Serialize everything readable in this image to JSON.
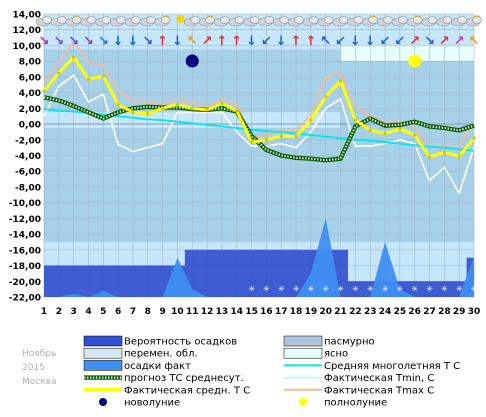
{
  "watermark": {
    "month_year": "Ноябрь 2015",
    "month": "Ноябрь",
    "year": "2015",
    "city": "Москва"
  },
  "colors": {
    "bg_light": "#c6e6fb",
    "bg_mid": "#a7d0e9",
    "clear": "#eafdfe",
    "precip_prob": "#3350cf",
    "precip_fact": "#3f8ef2",
    "tmin": "#ffffff",
    "tmax": "#f5b99a",
    "tavg": "#ffff00",
    "forecast": "#0a7d0a",
    "climate": "#00e5ee",
    "new_moon": "#000080",
    "full_moon": "#ffff00"
  },
  "chart_data": {
    "type": "line",
    "x": [
      1,
      2,
      3,
      4,
      5,
      6,
      7,
      8,
      9,
      10,
      11,
      12,
      13,
      14,
      15,
      16,
      17,
      18,
      19,
      20,
      21,
      22,
      23,
      24,
      25,
      26,
      27,
      28,
      29,
      30
    ],
    "xlim": [
      1,
      30
    ],
    "ylim": [
      -22,
      14
    ],
    "yticks": [
      "14,00",
      "12,00",
      "10,00",
      "8,00",
      "6,00",
      "4,00",
      "2,00",
      "0,00",
      "-2,00",
      "-4,00",
      "-6,00",
      "-8,00",
      "-10,00",
      "-12,00",
      "-14,00",
      "-16,00",
      "-18,00",
      "-20,00",
      "-22,00"
    ],
    "xticks": [
      "1",
      "2",
      "3",
      "4",
      "5",
      "6",
      "7",
      "8",
      "9",
      "10",
      "11",
      "12",
      "13",
      "14",
      "15",
      "16",
      "17",
      "18",
      "19",
      "20",
      "21",
      "22",
      "23",
      "24",
      "25",
      "26",
      "27",
      "28",
      "29",
      "30"
    ],
    "grid": true,
    "series": [
      {
        "name": "Фактическая средн. Т С",
        "key": "tavg",
        "values": [
          4.2,
          6.5,
          8.5,
          5.7,
          6.1,
          2.5,
          1.5,
          1.3,
          2.0,
          2.5,
          2.0,
          1.8,
          2.6,
          1.7,
          -2.3,
          -2.0,
          -1.5,
          -1.6,
          0.5,
          3.5,
          5.5,
          0.5,
          -0.8,
          -1.2,
          -0.6,
          -1.4,
          -4.2,
          -3.6,
          -4.1,
          -1.8
        ]
      },
      {
        "name": "Фактическая Tmin, С",
        "key": "tmin",
        "values": [
          1.0,
          4.8,
          6.2,
          2.8,
          3.8,
          -2.6,
          -3.5,
          -3.0,
          -2.5,
          1.5,
          1.5,
          1.5,
          1.5,
          -1.0,
          -2.8,
          -2.8,
          -2.5,
          -3.0,
          -1.0,
          2.0,
          3.2,
          -2.8,
          -2.8,
          -2.5,
          -2.0,
          -2.5,
          -7.2,
          -5.5,
          -8.8,
          -3.0
        ]
      },
      {
        "name": "Фактическая Tmax, С",
        "key": "tmax",
        "values": [
          5.2,
          7.8,
          10.5,
          7.8,
          7.5,
          4.2,
          3.0,
          2.8,
          2.5,
          3.2,
          2.8,
          2.2,
          3.2,
          2.6,
          -1.8,
          -1.4,
          -0.8,
          -0.8,
          1.2,
          6.0,
          6.4,
          2.3,
          1.0,
          0.3,
          0.3,
          -0.4,
          -3.0,
          -2.7,
          -2.8,
          0.2
        ]
      },
      {
        "name": "прогноз ТС среднесут.",
        "key": "forecast",
        "values": [
          3.4,
          3.0,
          2.3,
          1.5,
          0.7,
          1.5,
          2.0,
          2.2,
          2.1,
          2.1,
          1.9,
          1.8,
          2.0,
          1.6,
          -1.5,
          -3.3,
          -4.0,
          -4.3,
          -4.4,
          -4.6,
          -4.4,
          -0.3,
          0.7,
          -0.2,
          -0.1,
          0.3,
          -0.3,
          -0.5,
          -0.8,
          -0.2
        ]
      },
      {
        "name": "Средняя многолетняя Т С",
        "key": "climate",
        "values": [
          1.9,
          1.7,
          1.6,
          1.4,
          1.2,
          1.0,
          0.8,
          0.6,
          0.5,
          0.3,
          0.1,
          -0.1,
          -0.3,
          -0.5,
          -0.7,
          -0.9,
          -1.0,
          -1.2,
          -1.4,
          -1.6,
          -1.8,
          -2.0,
          -2.1,
          -2.3,
          -2.5,
          -2.7,
          -2.9,
          -3.0,
          -3.2,
          -3.4
        ]
      }
    ],
    "precip_probability": [
      -18,
      -18,
      -18,
      -18,
      -18,
      -18,
      -18,
      -18,
      -18,
      -18,
      -16,
      -16,
      -16,
      -16,
      -16,
      -16,
      -16,
      -16,
      -16,
      -16,
      -16,
      -20,
      -20,
      -20,
      -20,
      -20,
      -20,
      -20,
      -20,
      -17
    ],
    "precip_fact": [
      -22,
      -22,
      -21.6,
      -22,
      -21.2,
      -22,
      -22,
      -22,
      -22,
      -17,
      -21,
      -22,
      -22,
      -22,
      -22,
      -22,
      -22,
      -22,
      -19,
      -12,
      -22,
      -22,
      -22,
      -15,
      -21,
      -22,
      -22,
      -22,
      -22,
      -16.8
    ],
    "snow_markers": [
      15,
      16,
      17,
      18,
      19,
      20,
      21,
      22,
      23,
      24,
      25,
      26,
      27,
      28,
      29,
      30
    ],
    "cloud_band": [
      {
        "from": 1,
        "to": 21,
        "y_top": 9.5,
        "y_bottom": 2.0,
        "tone": "bg_light"
      },
      {
        "from": 21,
        "to": 30,
        "y_top": 10.0,
        "y_bottom": 8.0,
        "tone": "clear"
      }
    ],
    "wind_arrows": [
      "↘",
      "↘",
      "↘",
      "↘",
      "↘",
      "↓",
      "↓",
      "↘",
      "↑",
      "↓",
      "↖",
      "↗",
      "↑",
      "↑",
      "↓",
      "↙",
      "↓",
      "↑",
      "↑",
      "↖",
      "↙",
      "↓",
      "↓",
      "↙",
      "↙",
      "↗",
      "↘",
      "↗",
      "↗",
      "↖"
    ],
    "wind_colors": [
      "#c020c0",
      "#7050d0",
      "#5050f0",
      "#8040c0",
      "#3070f0",
      "#1060e0",
      "#1060e0",
      "#3050f0",
      "#e03030",
      "#2060e0",
      "#f0a000",
      "#e03030",
      "#e03030",
      "#e03030",
      "#2060e0",
      "#2060e0",
      "#2060e0",
      "#e03030",
      "#e03030",
      "#3050f0",
      "#2060e0",
      "#2060e0",
      "#2060e0",
      "#2060e0",
      "#2060e0",
      "#e03030",
      "#3050f0",
      "#e03030",
      "#c040c0",
      "#f0a000"
    ],
    "sky_icons": [
      "cloud",
      "cloud",
      "cloud-sun",
      "cloud",
      "cloud",
      "cloud",
      "cloud",
      "cloud",
      "cloud-sun",
      "sun",
      "cloud",
      "cloud-sun",
      "cloud",
      "cloud",
      "cloud",
      "cloud",
      "cloud",
      "cloud",
      "cloud",
      "cloud",
      "cloud",
      "cloud",
      "cloud-sun",
      "cloud",
      "cloud",
      "cloud-sun",
      "cloud",
      "cloud",
      "cloud",
      "cloud-sun"
    ],
    "moon_phases": [
      {
        "day": 11,
        "phase": "new"
      },
      {
        "day": 26,
        "phase": "full"
      }
    ],
    "legend": {
      "position": "bottom",
      "entries": [
        {
          "label": "Вероятность осадков",
          "swatch": "box",
          "color": "#3350cf"
        },
        {
          "label": "пасмурно",
          "swatch": "box",
          "color": "#b0c4de"
        },
        {
          "label": "перемен. обл.",
          "swatch": "box",
          "color": "#d6e8f6"
        },
        {
          "label": "ясно",
          "swatch": "box",
          "color": "#e6fcfd"
        },
        {
          "label": "осадки факт",
          "swatch": "box",
          "color": "#3f8ef2"
        },
        {
          "label": "Средняя многолетняя Т С",
          "swatch": "line",
          "color": "#00e5ee"
        },
        {
          "label": "прогноз ТС среднесут.",
          "swatch": "dotted",
          "color": "#0a7d0a"
        },
        {
          "label": "Фактическая Tmin, С",
          "swatch": "line",
          "color": "#ccf6f8"
        },
        {
          "label": "Фактическая средн. Т С",
          "swatch": "thick",
          "color": "#ffff00"
        },
        {
          "label": "Фактическая Tmax С",
          "swatch": "line",
          "color": "#f5b99a"
        },
        {
          "label": "новолуние",
          "swatch": "dot",
          "color": "#000080"
        },
        {
          "label": "полнолуние",
          "swatch": "dot",
          "color": "#ffff00"
        }
      ]
    }
  }
}
